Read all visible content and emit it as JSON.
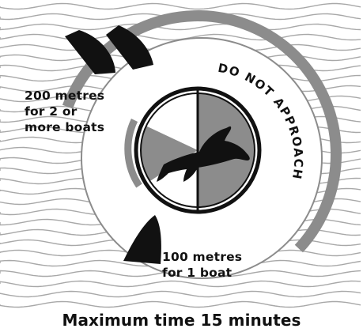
{
  "labels": {
    "far_zone": "200 metres\nfor 2 or\nmore boats",
    "near_zone": "100 metres\nfor 1 boat",
    "no_approach": "DO NOT APPROACH"
  },
  "caption": "Maximum time 15 minutes",
  "colors": {
    "background": "#ffffff",
    "waves": "#a8a8a8",
    "zone_fill": "#8c8c8c",
    "outline": "#111111",
    "boat": "#111111",
    "dolphin": "#111111",
    "text": "#111111"
  },
  "icons": {
    "boats": [
      "boat-icon",
      "boat-icon",
      "boat-icon"
    ],
    "animal": "dolphin-icon"
  }
}
